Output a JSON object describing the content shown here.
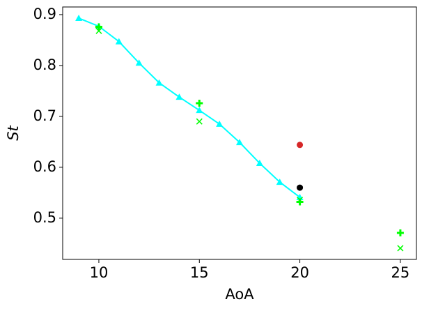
{
  "chart_data": {
    "type": "line",
    "xlabel": "AoA",
    "ylabel": "St",
    "xlim": [
      8.2,
      25.8
    ],
    "ylim": [
      0.419,
      0.915
    ],
    "xticks": [
      10,
      15,
      20,
      25
    ],
    "yticks": [
      0.5,
      0.6,
      0.7,
      0.8,
      0.9
    ],
    "series": [
      {
        "color": "#00ffff",
        "marker": "triangle",
        "line": true,
        "x": [
          9,
          10,
          11,
          12,
          13,
          14,
          15,
          16,
          17,
          18,
          19,
          20
        ],
        "values": [
          0.893,
          0.877,
          0.847,
          0.805,
          0.766,
          0.738,
          0.712,
          0.685,
          0.649,
          0.608,
          0.571,
          0.541
        ]
      },
      {
        "color": "#00ff00",
        "marker": "plus",
        "line": false,
        "x": [
          10,
          15,
          20,
          25
        ],
        "values": [
          0.876,
          0.726,
          0.532,
          0.471
        ]
      },
      {
        "color": "#00ff00",
        "marker": "x",
        "line": false,
        "x": [
          10,
          15,
          20,
          25
        ],
        "values": [
          0.868,
          0.69,
          0.536,
          0.441
        ]
      },
      {
        "color": "#d62728",
        "marker": "circle",
        "line": false,
        "x": [
          20
        ],
        "values": [
          0.644
        ]
      },
      {
        "color": "#000000",
        "marker": "circle",
        "line": false,
        "x": [
          20
        ],
        "values": [
          0.56
        ]
      }
    ]
  }
}
